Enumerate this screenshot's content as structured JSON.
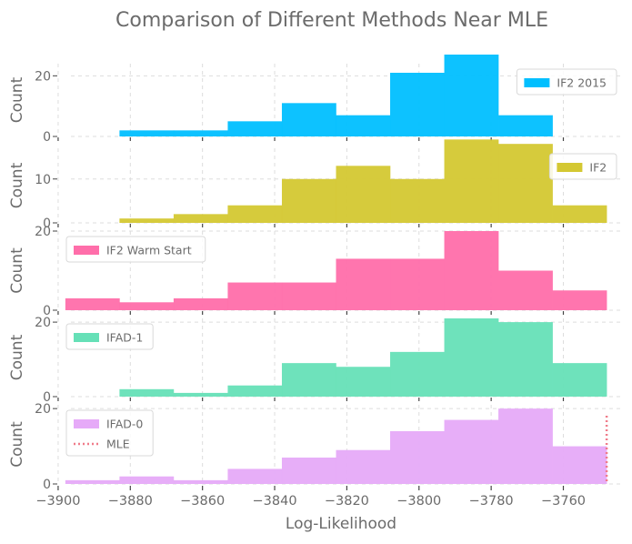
{
  "chart_data": {
    "title": "Comparison of Different Methods Near MLE",
    "xlabel": "Log-Likelihood",
    "xlim": [
      -3902,
      -3744
    ],
    "x_ticks": [
      -3900,
      -3880,
      -3860,
      -3840,
      -3820,
      -3800,
      -3780,
      -3760
    ],
    "x_tick_labels": [
      "−3900",
      "−3880",
      "−3860",
      "−3840",
      "−3820",
      "−3800",
      "−3780",
      "−3760"
    ],
    "grid": true,
    "mle": {
      "label": "MLE",
      "x": -3748,
      "color": "#f07c8a"
    },
    "panels": [
      {
        "type": "bar",
        "name": "IF2 2015",
        "color": "#00bfff",
        "ylabel": "Count",
        "ylim": [
          0,
          24
        ],
        "y_ticks": [
          0,
          20
        ],
        "legend_position": "upper right",
        "bin_edges": [
          -3883,
          -3868,
          -3853,
          -3838,
          -3823,
          -3808,
          -3793,
          -3778,
          -3763
        ],
        "counts": [
          2,
          2,
          5,
          11,
          7,
          21,
          27,
          7
        ]
      },
      {
        "type": "bar",
        "name": "IF2",
        "color": "#d4c832",
        "ylabel": "Count",
        "ylim": [
          0,
          17
        ],
        "y_ticks": [
          0,
          10
        ],
        "legend_position": "upper right",
        "bin_edges": [
          -3883,
          -3868,
          -3853,
          -3838,
          -3823,
          -3808,
          -3793,
          -3778,
          -3763,
          -3748
        ],
        "counts": [
          1,
          2,
          4,
          10,
          13,
          10,
          19,
          18,
          4
        ]
      },
      {
        "type": "bar",
        "name": "IF2 Warm Start",
        "color": "#ff6eaa",
        "ylabel": "Count",
        "ylim": [
          0,
          20
        ],
        "y_ticks": [
          0,
          20
        ],
        "legend_position": "upper left",
        "bin_edges": [
          -3898,
          -3883,
          -3868,
          -3853,
          -3838,
          -3823,
          -3808,
          -3793,
          -3778,
          -3763,
          -3748
        ],
        "counts": [
          3,
          2,
          3,
          7,
          7,
          13,
          13,
          20,
          10,
          5
        ]
      },
      {
        "type": "bar",
        "name": "IFAD-1",
        "color": "#66e0b7",
        "ylabel": "Count",
        "ylim": [
          0,
          21
        ],
        "y_ticks": [
          0,
          20
        ],
        "legend_position": "upper left",
        "bin_edges": [
          -3883,
          -3868,
          -3853,
          -3838,
          -3823,
          -3808,
          -3793,
          -3778,
          -3763,
          -3748
        ],
        "counts": [
          2,
          1,
          3,
          9,
          8,
          12,
          21,
          20,
          9
        ]
      },
      {
        "type": "bar",
        "name": "IFAD-0",
        "color": "#e6aaf8",
        "ylabel": "Count",
        "ylim": [
          0,
          21
        ],
        "y_ticks": [
          0,
          20
        ],
        "legend_position": "upper left",
        "show_mle": true,
        "bin_edges": [
          -3898,
          -3883,
          -3868,
          -3853,
          -3838,
          -3823,
          -3808,
          -3793,
          -3778,
          -3763,
          -3748
        ],
        "counts": [
          1,
          2,
          1,
          4,
          7,
          9,
          14,
          17,
          20,
          10
        ]
      }
    ]
  },
  "text_color": "#6b6b6b"
}
